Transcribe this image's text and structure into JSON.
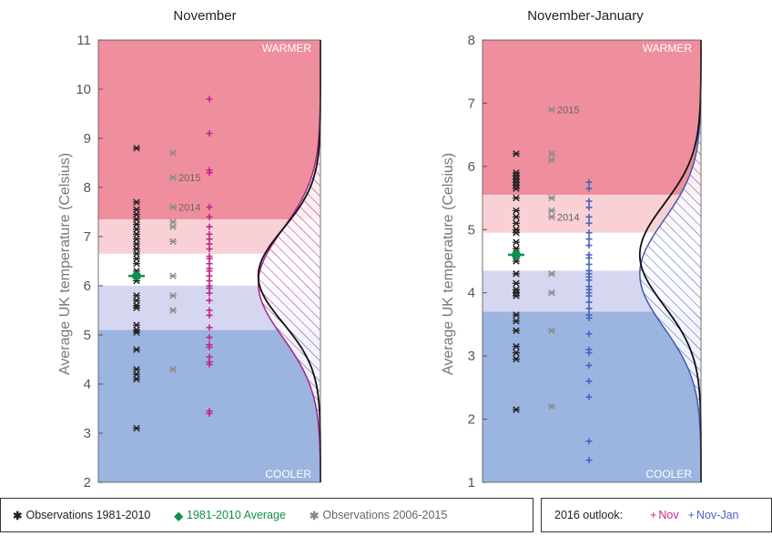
{
  "chart_data": [
    {
      "type": "scatter",
      "title": "November",
      "ylabel": "Average UK temperature (Celsius)",
      "ylim": [
        2,
        11
      ],
      "yticks": [
        2,
        3,
        4,
        5,
        6,
        7,
        8,
        9,
        10,
        11
      ],
      "bands": [
        {
          "from": 7.35,
          "to": 11,
          "color": "#ef8e9d"
        },
        {
          "from": 6.65,
          "to": 7.35,
          "color": "#f8d0d5"
        },
        {
          "from": 6.0,
          "to": 6.65,
          "color": "#ffffff"
        },
        {
          "from": 5.1,
          "to": 6.0,
          "color": "#d4d7ef"
        },
        {
          "from": 2,
          "to": 5.1,
          "color": "#9cb4e0"
        }
      ],
      "warmer_label": "WARMER",
      "cooler_label": "COOLER",
      "average_1981_2010": 6.2,
      "observations_1981_2010": [
        8.8,
        7.7,
        7.55,
        7.45,
        7.35,
        7.25,
        7.15,
        7.05,
        6.95,
        6.85,
        6.75,
        6.65,
        6.55,
        6.45,
        6.3,
        6.2,
        6.1,
        5.8,
        5.7,
        5.6,
        5.55,
        5.2,
        5.1,
        5.05,
        4.7,
        4.3,
        4.2,
        4.1,
        3.1
      ],
      "observations_2006_2015": [
        8.7,
        8.2,
        7.6,
        7.3,
        7.2,
        6.9,
        6.2,
        5.8,
        5.5,
        4.3
      ],
      "annotations": [
        {
          "year": "2014",
          "value": 7.6
        },
        {
          "year": "2015",
          "value": 8.2
        }
      ],
      "outlook_label": "Nov",
      "outlook_values": [
        9.8,
        9.1,
        8.35,
        8.3,
        7.6,
        7.4,
        7.2,
        7.05,
        6.95,
        6.85,
        6.75,
        6.6,
        6.55,
        6.45,
        6.35,
        6.3,
        6.2,
        6.1,
        6.0,
        5.95,
        5.85,
        5.7,
        5.5,
        5.4,
        5.15,
        4.95,
        4.8,
        4.75,
        4.55,
        4.45,
        4.4,
        3.45,
        3.4
      ],
      "distribution": {
        "color": "#a4248f",
        "observed_mean": 6.2,
        "observed_sd": 0.95,
        "outlook_mean": 6.05,
        "outlook_sd": 1.1
      }
    },
    {
      "type": "scatter",
      "title": "November-January",
      "ylabel": "Average UK temperature (Celsius)",
      "ylim": [
        1,
        8
      ],
      "yticks": [
        1,
        2,
        3,
        4,
        5,
        6,
        7,
        8
      ],
      "bands": [
        {
          "from": 5.55,
          "to": 8,
          "color": "#ef8e9d"
        },
        {
          "from": 4.95,
          "to": 5.55,
          "color": "#f8d0d5"
        },
        {
          "from": 4.35,
          "to": 4.95,
          "color": "#ffffff"
        },
        {
          "from": 3.7,
          "to": 4.35,
          "color": "#d4d7ef"
        },
        {
          "from": 1,
          "to": 3.7,
          "color": "#9cb4e0"
        }
      ],
      "warmer_label": "WARMER",
      "cooler_label": "COOLER",
      "average_1981_2010": 4.6,
      "observations_1981_2010": [
        6.2,
        5.9,
        5.85,
        5.8,
        5.75,
        5.7,
        5.65,
        5.5,
        5.3,
        5.2,
        5.1,
        5.0,
        4.95,
        4.8,
        4.7,
        4.6,
        4.5,
        4.3,
        4.15,
        4.05,
        4.0,
        3.95,
        3.65,
        3.55,
        3.4,
        3.15,
        3.05,
        2.95,
        2.15
      ],
      "observations_2006_2015": [
        6.9,
        6.2,
        6.1,
        5.5,
        5.3,
        5.2,
        4.3,
        4.0,
        3.4,
        2.2
      ],
      "annotations": [
        {
          "year": "2015",
          "value": 6.9
        },
        {
          "year": "2014",
          "value": 5.2
        }
      ],
      "outlook_label": "Nov-Jan",
      "outlook_values": [
        5.75,
        5.65,
        5.45,
        5.35,
        5.2,
        5.1,
        4.95,
        4.85,
        4.75,
        4.6,
        4.55,
        4.45,
        4.35,
        4.3,
        4.25,
        4.2,
        4.1,
        4.05,
        4.0,
        3.95,
        3.85,
        3.75,
        3.65,
        3.6,
        3.35,
        3.1,
        3.05,
        2.85,
        2.6,
        2.35,
        1.65,
        1.35
      ],
      "distribution": {
        "color": "#3f5ab0",
        "observed_mean": 4.6,
        "observed_sd": 0.8,
        "outlook_mean": 4.3,
        "outlook_sd": 0.85
      }
    }
  ],
  "legend": {
    "observations_1981_2010": "Observations 1981-2010",
    "average_1981_2010": "1981-2010 Average",
    "observations_2006_2015": "Observations 2006-2015",
    "outlook_title": "2016 outlook:",
    "nov": "Nov",
    "nov_jan": "Nov-Jan",
    "colors": {
      "obs": "#222222",
      "average": "#0f8f4d",
      "recent": "#8c8c8c",
      "nov": "#c0268f",
      "nov_jan": "#4863c0"
    }
  }
}
